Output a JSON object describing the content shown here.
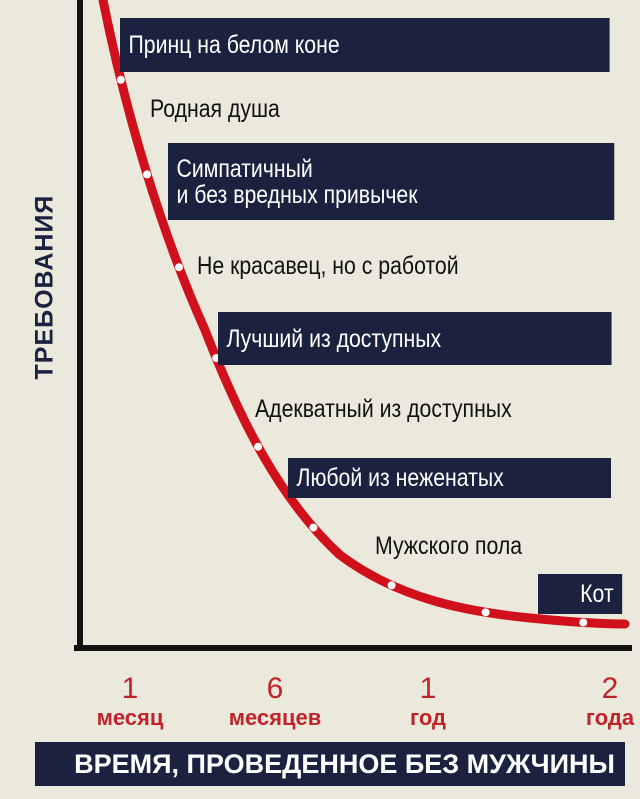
{
  "chart_data": {
    "type": "line",
    "ylabel": "ТРЕБОВАНИЯ",
    "xlabel": "ВРЕМЯ, ПРОВЕДЕННОЕ БЕЗ МУЖЧИНЫ",
    "x_ticks": [
      {
        "num": "1",
        "word": "месяц"
      },
      {
        "num": "6",
        "word": "месяцев"
      },
      {
        "num": "1",
        "word": "год"
      },
      {
        "num": "2",
        "word": "года"
      }
    ],
    "annotations": [
      {
        "text": "Принц на белом коне",
        "boxed": true
      },
      {
        "text": "Родная душа",
        "boxed": false
      },
      {
        "text": "Симпатичный",
        "text2": "и без вредных привычек",
        "boxed": true
      },
      {
        "text": "Не красавец, но с работой",
        "boxed": false
      },
      {
        "text": "Лучший из доступных",
        "boxed": true
      },
      {
        "text": "Адекватный из доступных",
        "boxed": false
      },
      {
        "text": "Любой из неженатых",
        "boxed": true
      },
      {
        "text": "Мужского пола",
        "boxed": false
      },
      {
        "text": "Кот",
        "boxed": true
      }
    ],
    "trend": "decreasing, exponential decay",
    "colors": {
      "curve": "#d0101a",
      "box": "#1a2240",
      "tick_labels": "#c0242a",
      "background": "#ebe8dc"
    }
  }
}
